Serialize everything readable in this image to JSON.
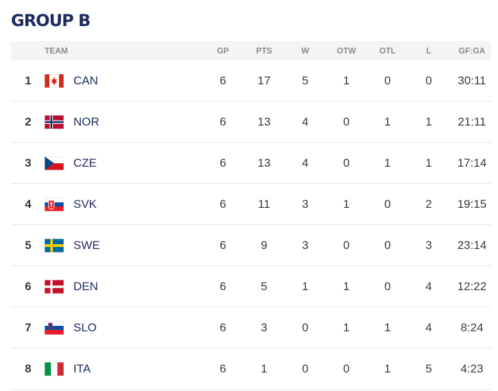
{
  "title": "GROUP B",
  "table": {
    "headers": [
      "TEAM",
      "GP",
      "PTS",
      "W",
      "OTW",
      "OTL",
      "L",
      "GF:GA"
    ],
    "rows": [
      [
        1,
        "CAN",
        6,
        17,
        5,
        1,
        0,
        0,
        "30:11"
      ],
      [
        2,
        "NOR",
        6,
        13,
        4,
        0,
        1,
        1,
        "21:11"
      ],
      [
        3,
        "CZE",
        6,
        13,
        4,
        0,
        1,
        1,
        "17:14"
      ],
      [
        4,
        "SVK",
        6,
        11,
        3,
        1,
        0,
        2,
        "19:15"
      ],
      [
        5,
        "SWE",
        6,
        9,
        3,
        0,
        0,
        3,
        "23:14"
      ],
      [
        6,
        "DEN",
        6,
        5,
        1,
        1,
        0,
        4,
        "12:22"
      ],
      [
        7,
        "SLO",
        6,
        3,
        0,
        1,
        1,
        4,
        "8:24"
      ],
      [
        8,
        "ITA",
        6,
        1,
        0,
        0,
        1,
        5,
        "4:23"
      ]
    ]
  }
}
